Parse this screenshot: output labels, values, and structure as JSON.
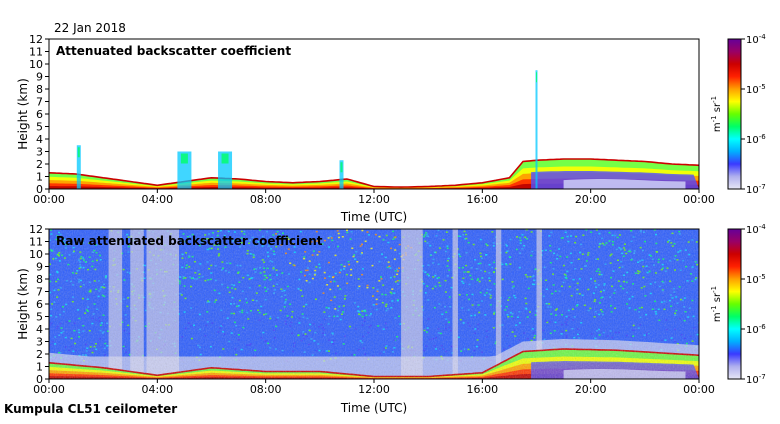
{
  "date_label": "22 Jan 2018",
  "footer_label": "Kumpula CL51 ceilometer",
  "x_axis": {
    "label": "Time (UTC)",
    "ticks": [
      "00:00",
      "04:00",
      "08:00",
      "12:00",
      "16:00",
      "20:00",
      "00:00"
    ]
  },
  "y_axis": {
    "label": "Height (km)",
    "ticks": [
      "0",
      "1",
      "2",
      "3",
      "4",
      "5",
      "6",
      "7",
      "8",
      "9",
      "10",
      "11",
      "12"
    ]
  },
  "colorbar": {
    "ticks": [
      "10",
      "10",
      "10",
      "10"
    ],
    "exponents": [
      "-7",
      "-6",
      "-5",
      "-4"
    ],
    "unit_m": "m",
    "unit_m_exp": "-1",
    "unit_sr": "sr",
    "unit_sr_exp": "-1",
    "colors": [
      "#e6e6f5",
      "#b0b0ee",
      "#3a3aff",
      "#00b0ff",
      "#00ffff",
      "#00ff66",
      "#66ff00",
      "#ffff00",
      "#ffa000",
      "#ff2000",
      "#cc0000",
      "#990066",
      "#660099"
    ]
  },
  "chart_data": [
    {
      "type": "heatmap",
      "title": "Attenuated backscatter coefficient",
      "xlabel": "Time (UTC)",
      "ylabel": "Height (km)",
      "xlim": [
        0,
        24
      ],
      "ylim": [
        0,
        12
      ],
      "colorbar_range": [
        1e-07,
        0.0001
      ],
      "boundary_layer_top_km": [
        [
          0,
          1.3
        ],
        [
          1,
          1.2
        ],
        [
          2,
          0.9
        ],
        [
          3,
          0.6
        ],
        [
          4,
          0.3
        ],
        [
          5,
          0.6
        ],
        [
          6,
          0.9
        ],
        [
          7,
          0.8
        ],
        [
          8,
          0.6
        ],
        [
          9,
          0.5
        ],
        [
          10,
          0.6
        ],
        [
          11,
          0.8
        ],
        [
          12,
          0.2
        ],
        [
          13,
          0.15
        ],
        [
          14,
          0.2
        ],
        [
          15,
          0.3
        ],
        [
          16,
          0.5
        ],
        [
          17,
          0.9
        ],
        [
          17.5,
          2.2
        ],
        [
          18,
          2.3
        ],
        [
          19,
          2.4
        ],
        [
          20,
          2.4
        ],
        [
          21,
          2.3
        ],
        [
          22,
          2.2
        ],
        [
          23,
          2.0
        ],
        [
          24,
          1.9
        ]
      ],
      "cloud_features_km": [
        {
          "time": 1.1,
          "top": 3.5
        },
        {
          "time": 5.0,
          "top": 3.0
        },
        {
          "time": 6.5,
          "top": 3.0
        },
        {
          "time": 10.8,
          "top": 2.3
        },
        {
          "time": 18.0,
          "top": 9.5
        }
      ]
    },
    {
      "type": "heatmap",
      "title": "Raw attenuated backscatter coefficient",
      "xlabel": "Time (UTC)",
      "ylabel": "Height (km)",
      "xlim": [
        0,
        24
      ],
      "ylim": [
        0,
        12
      ],
      "colorbar_range": [
        1e-07,
        0.0001
      ],
      "boundary_layer_top_km": [
        [
          0,
          1.3
        ],
        [
          2,
          0.9
        ],
        [
          4,
          0.3
        ],
        [
          6,
          0.9
        ],
        [
          8,
          0.6
        ],
        [
          10,
          0.6
        ],
        [
          12,
          0.2
        ],
        [
          14,
          0.2
        ],
        [
          16,
          0.5
        ],
        [
          17.5,
          2.2
        ],
        [
          19,
          2.4
        ],
        [
          21,
          2.3
        ],
        [
          24,
          1.9
        ]
      ],
      "low_signal_columns_hours": [
        [
          2.2,
          2.7
        ],
        [
          3.0,
          3.5
        ],
        [
          3.6,
          4.8
        ],
        [
          13.0,
          13.8
        ],
        [
          14.9,
          15.1
        ],
        [
          16.5,
          16.7
        ],
        [
          18.0,
          18.2
        ]
      ]
    }
  ]
}
